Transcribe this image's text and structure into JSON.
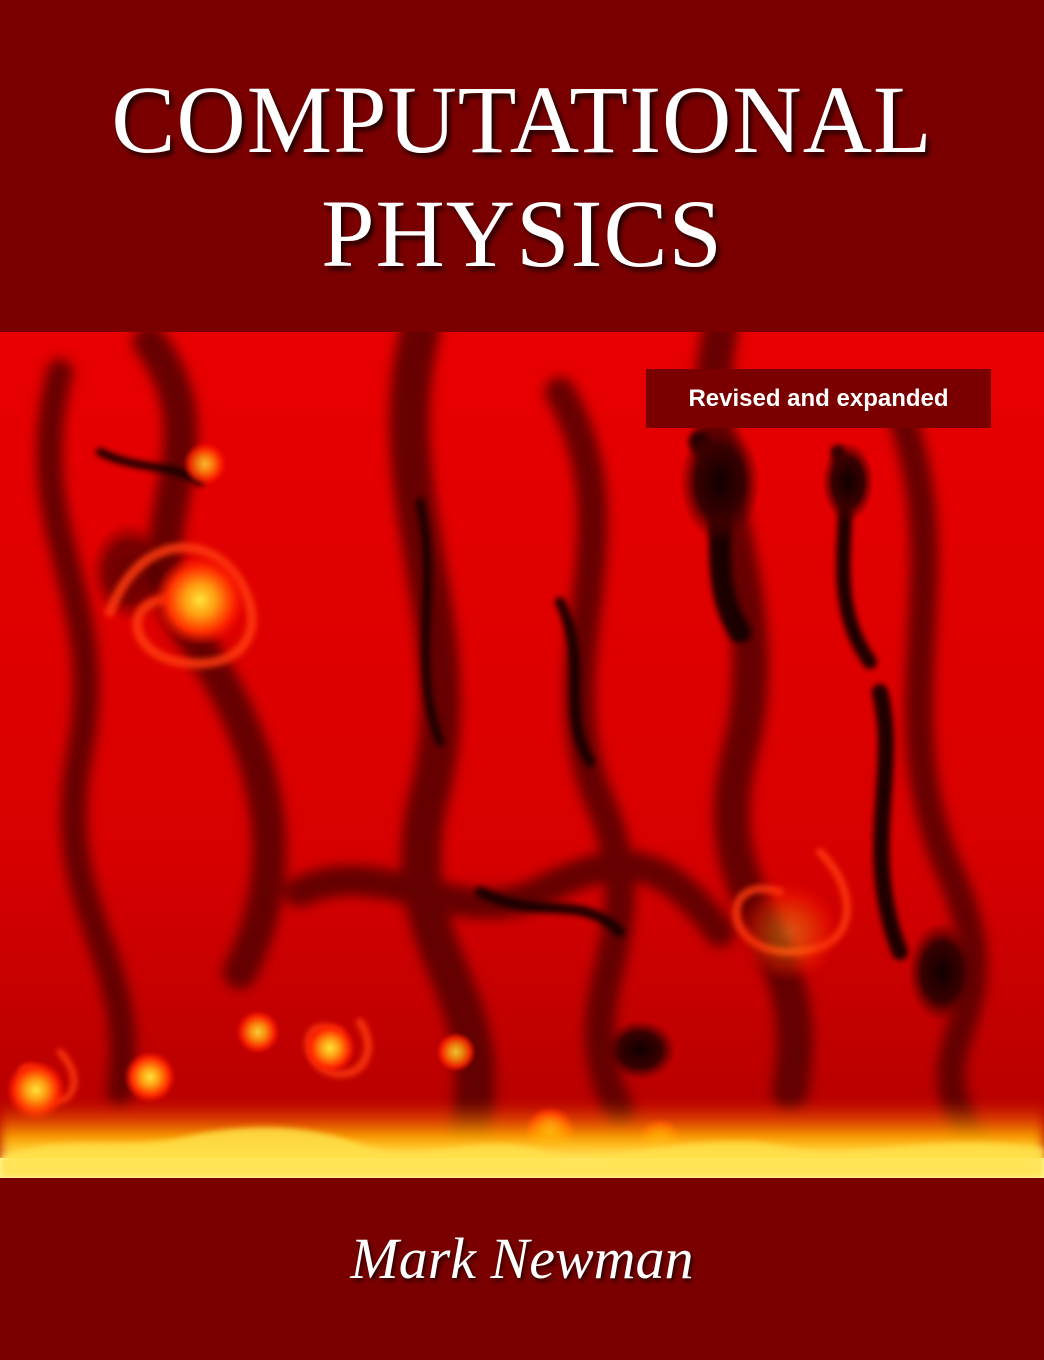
{
  "cover": {
    "title_line_1": "COMPUTATIONAL",
    "title_line_2": "PHYSICS",
    "badge": "Revised and expanded",
    "author": "Mark Newman"
  },
  "colors": {
    "band": "#7a0000",
    "art_base": "#e00000",
    "art_dark": "#2a0000",
    "art_hot": "#ffd21a",
    "text": "#ffffff"
  }
}
